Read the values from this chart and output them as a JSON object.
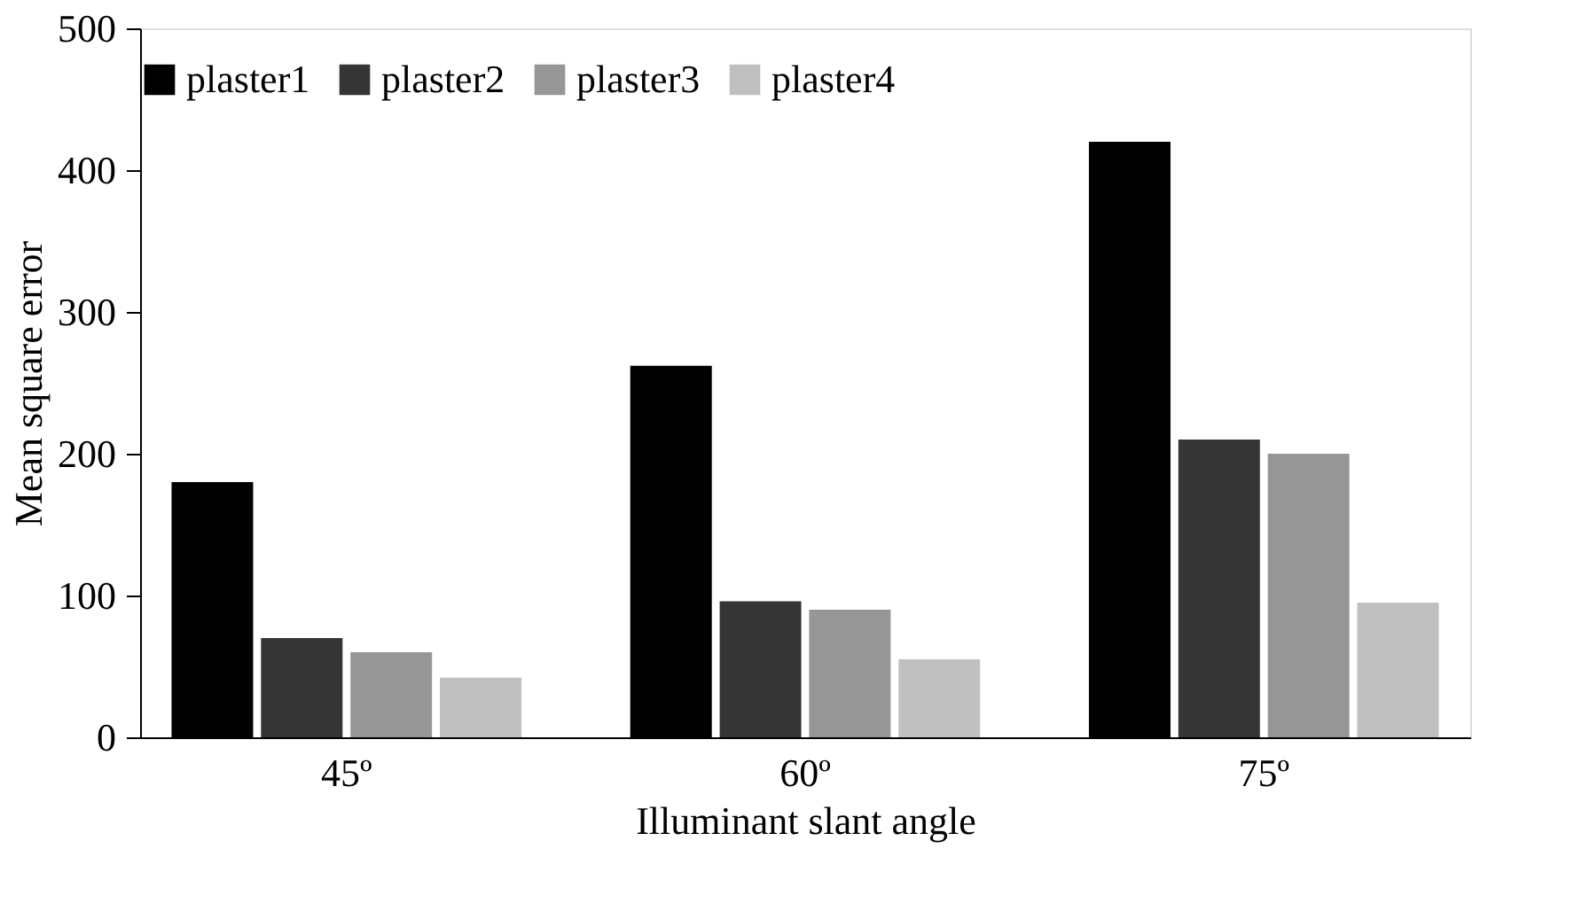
{
  "chart_data": {
    "type": "bar",
    "xlabel": "Illuminant slant angle",
    "ylabel": "Mean square error",
    "categories": [
      "45º",
      "60º",
      "75º"
    ],
    "series": [
      {
        "name": "plaster1",
        "color": "#000000",
        "values": [
          180,
          262,
          420
        ]
      },
      {
        "name": "plaster2",
        "color": "#353535",
        "values": [
          70,
          96,
          210
        ]
      },
      {
        "name": "plaster3",
        "color": "#969696",
        "values": [
          60,
          90,
          200
        ]
      },
      {
        "name": "plaster4",
        "color": "#c0c0c0",
        "values": [
          42,
          55,
          95
        ]
      }
    ],
    "ylim": [
      0,
      500
    ],
    "yticks": [
      0,
      100,
      200,
      300,
      400,
      500
    ],
    "grid": false,
    "legend": "top"
  }
}
